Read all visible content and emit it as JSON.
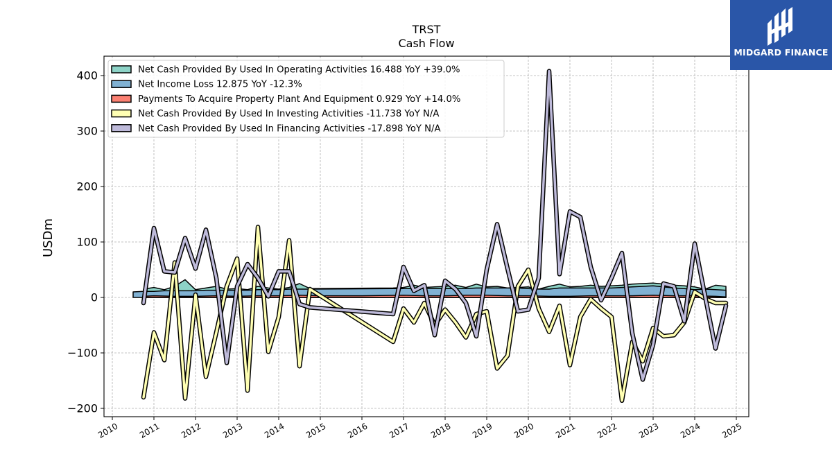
{
  "chart_data": {
    "type": "line",
    "title": "TRST",
    "subtitle": "Cash Flow",
    "ylabel": "USDm",
    "xlabel": "",
    "xlim": [
      2009.8,
      2025.3
    ],
    "ylim": [
      -215,
      435
    ],
    "yticks": [
      -200,
      -100,
      0,
      100,
      200,
      300,
      400
    ],
    "yticklabels": [
      "−200",
      "−100",
      "0",
      "100",
      "200",
      "300",
      "400"
    ],
    "xticks": [
      2010,
      2011,
      2012,
      2013,
      2014,
      2015,
      2016,
      2017,
      2018,
      2019,
      2020,
      2021,
      2022,
      2023,
      2024,
      2025
    ],
    "grid": true,
    "legend_position": "top-left",
    "series": [
      {
        "name": "Net Cash Provided By Used In Operating Activities",
        "legend": "Net Cash Provided By Used In Operating Activities  16.488 YoY +39.0%",
        "style": "area",
        "color": "#8dd3c7",
        "x": [
          2010.75,
          2011.0,
          2011.25,
          2011.5,
          2011.75,
          2012.0,
          2012.25,
          2012.5,
          2012.75,
          2013.0,
          2013.25,
          2013.5,
          2013.75,
          2014.0,
          2014.25,
          2014.5,
          2014.75,
          2016.75,
          2017.0,
          2017.25,
          2017.5,
          2017.75,
          2018.0,
          2018.25,
          2018.5,
          2018.75,
          2019.0,
          2019.25,
          2019.5,
          2019.75,
          2020.0,
          2020.25,
          2020.5,
          2020.75,
          2021.0,
          2021.25,
          2021.5,
          2021.75,
          2022.0,
          2022.25,
          2022.5,
          2022.75,
          2023.0,
          2023.25,
          2023.5,
          2023.75,
          2024.0,
          2024.25,
          2024.5,
          2024.75
        ],
        "values": [
          15,
          18,
          14,
          20,
          32,
          14,
          17,
          20,
          15,
          16,
          14,
          20,
          17,
          15,
          18,
          25,
          16,
          17,
          18,
          22,
          18,
          19,
          20,
          22,
          18,
          24,
          19,
          20,
          17,
          18,
          19,
          15,
          20,
          24,
          19,
          20,
          22,
          20,
          21,
          22,
          24,
          25,
          26,
          24,
          22,
          21,
          19,
          15,
          22,
          20
        ]
      },
      {
        "name": "Net Income Loss",
        "legend": "Net Income Loss  12.875 YoY -12.3%",
        "style": "area",
        "color": "#80b1d3",
        "x": [
          2010.5,
          2010.75,
          2011.0,
          2011.25,
          2011.5,
          2011.75,
          2012.0,
          2012.25,
          2012.5,
          2012.75,
          2013.0,
          2013.25,
          2013.5,
          2013.75,
          2014.0,
          2014.25,
          2014.5,
          2014.75,
          2016.75,
          2017.0,
          2017.25,
          2017.5,
          2017.75,
          2018.0,
          2018.25,
          2018.5,
          2018.75,
          2019.0,
          2019.25,
          2019.5,
          2019.75,
          2020.0,
          2020.25,
          2020.5,
          2020.75,
          2021.0,
          2021.25,
          2021.5,
          2021.75,
          2022.0,
          2022.25,
          2022.5,
          2022.75,
          2023.0,
          2023.25,
          2023.5,
          2023.75,
          2024.0,
          2024.25,
          2024.5,
          2024.75
        ],
        "values": [
          10,
          11,
          11,
          12,
          12,
          12,
          12,
          13,
          13,
          13,
          13,
          13,
          14,
          14,
          14,
          15,
          15,
          15,
          16,
          16,
          16,
          16,
          16,
          16,
          16,
          16,
          17,
          17,
          17,
          17,
          17,
          16,
          15,
          15,
          17,
          17,
          17,
          17,
          17,
          17,
          18,
          19,
          20,
          21,
          19,
          17,
          16,
          14,
          15,
          14,
          13
        ]
      },
      {
        "name": "Payments To Acquire Property Plant And Equipment",
        "legend": "Payments To Acquire Property Plant And Equipment  0.929 YoY +14.0%",
        "style": "area",
        "color": "#fb8072",
        "x": [
          2010.75,
          2011.0,
          2011.5,
          2012.0,
          2012.5,
          2013.0,
          2013.5,
          2014.0,
          2014.5,
          2015.0,
          2016.0,
          2017.0,
          2017.5,
          2018.0,
          2018.5,
          2019.0,
          2019.5,
          2020.0,
          2020.5,
          2021.0,
          2021.5,
          2022.0,
          2022.5,
          2023.0,
          2023.5,
          2024.0,
          2024.5,
          2024.75
        ],
        "values": [
          2,
          3,
          2,
          2,
          3,
          2,
          3,
          3,
          4,
          3,
          3,
          4,
          3,
          3,
          4,
          4,
          3,
          3,
          2,
          2,
          3,
          3,
          3,
          4,
          3,
          3,
          2,
          1
        ]
      },
      {
        "name": "Net Cash Provided By Used In Investing Activities",
        "legend": "Net Cash Provided By Used In Investing Activities  -11.738 YoY N/A",
        "style": "line",
        "color": "#ffffb3",
        "x": [
          2010.75,
          2011.0,
          2011.25,
          2011.5,
          2011.75,
          2012.0,
          2012.25,
          2012.5,
          2012.75,
          2013.0,
          2013.25,
          2013.5,
          2013.75,
          2014.0,
          2014.25,
          2014.5,
          2014.75,
          2016.75,
          2017.0,
          2017.25,
          2017.5,
          2017.75,
          2018.0,
          2018.25,
          2018.5,
          2018.75,
          2019.0,
          2019.25,
          2019.5,
          2019.75,
          2020.0,
          2020.25,
          2020.5,
          2020.75,
          2021.0,
          2021.25,
          2021.5,
          2021.75,
          2022.0,
          2022.25,
          2022.5,
          2022.75,
          2023.0,
          2023.25,
          2023.5,
          2023.75,
          2024.0,
          2024.25,
          2024.5,
          2024.75
        ],
        "values": [
          -180,
          -63,
          -113,
          63,
          -182,
          5,
          -143,
          -63,
          20,
          70,
          -168,
          127,
          -98,
          -35,
          103,
          -124,
          15,
          -80,
          -20,
          -45,
          -10,
          -50,
          -22,
          -45,
          -72,
          -30,
          -25,
          -128,
          -105,
          20,
          50,
          -20,
          -62,
          -15,
          -122,
          -35,
          -3,
          -20,
          -35,
          -186,
          -80,
          -115,
          -55,
          -70,
          -68,
          -45,
          10,
          -2,
          -10,
          -10
        ]
      },
      {
        "name": "Net Cash Provided By Used In Financing Activities",
        "legend": "Net Cash Provided By Used In Financing Activities  -17.898 YoY N/A",
        "style": "line",
        "color": "#bebada",
        "x": [
          2010.75,
          2011.0,
          2011.25,
          2011.5,
          2011.75,
          2012.0,
          2012.25,
          2012.5,
          2012.75,
          2013.0,
          2013.25,
          2013.5,
          2013.75,
          2014.0,
          2014.25,
          2014.5,
          2014.75,
          2016.75,
          2017.0,
          2017.25,
          2017.5,
          2017.75,
          2018.0,
          2018.25,
          2018.5,
          2018.75,
          2019.0,
          2019.25,
          2019.5,
          2019.75,
          2020.0,
          2020.25,
          2020.5,
          2020.75,
          2021.0,
          2021.25,
          2021.5,
          2021.75,
          2022.0,
          2022.25,
          2022.5,
          2022.75,
          2023.0,
          2023.25,
          2023.5,
          2023.75,
          2024.0,
          2024.25,
          2024.5,
          2024.75
        ],
        "values": [
          -10,
          125,
          47,
          45,
          107,
          52,
          122,
          35,
          -118,
          20,
          60,
          35,
          2,
          47,
          47,
          -12,
          -18,
          -30,
          55,
          12,
          22,
          -68,
          30,
          15,
          -10,
          -70,
          50,
          132,
          52,
          -25,
          -22,
          35,
          408,
          42,
          155,
          145,
          55,
          -5,
          35,
          80,
          -65,
          -148,
          -85,
          25,
          20,
          -43,
          97,
          2,
          -92,
          -15
        ]
      }
    ]
  },
  "logo": {
    "text": "MIDGARD FINANCE"
  }
}
